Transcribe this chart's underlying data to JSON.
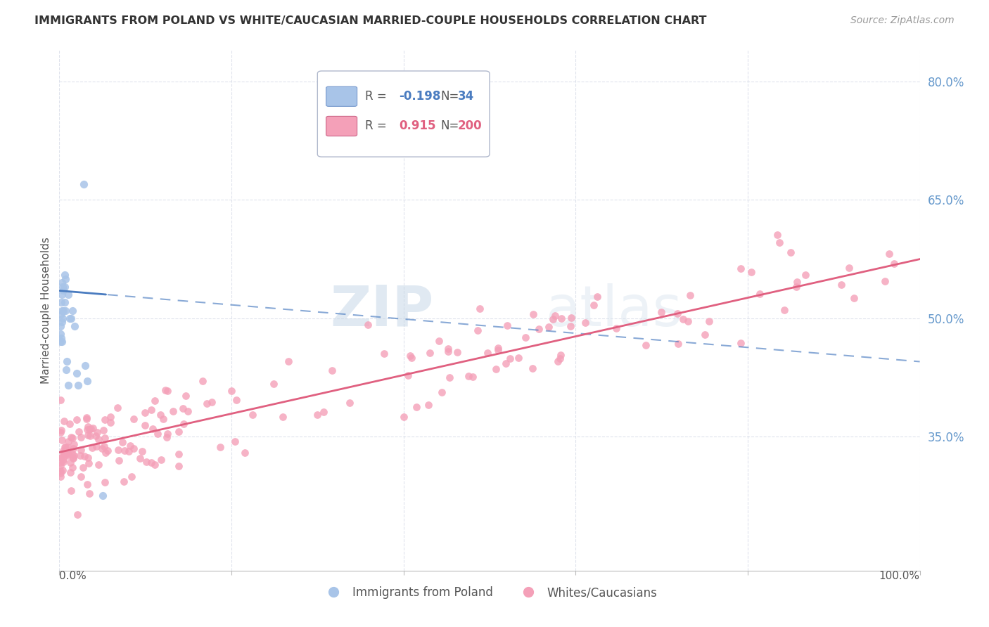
{
  "title": "IMMIGRANTS FROM POLAND VS WHITE/CAUCASIAN MARRIED-COUPLE HOUSEHOLDS CORRELATION CHART",
  "source": "Source: ZipAtlas.com",
  "ylabel": "Married-couple Households",
  "ytick_vals": [
    0.8,
    0.65,
    0.5,
    0.35
  ],
  "ytick_labels": [
    "80.0%",
    "65.0%",
    "50.0%",
    "35.0%"
  ],
  "blue_R": -0.198,
  "blue_N": 34,
  "pink_R": 0.915,
  "pink_N": 200,
  "blue_color": "#a8c4e8",
  "pink_color": "#f4a0b8",
  "blue_line_color": "#4a7cc0",
  "pink_line_color": "#e06080",
  "legend_blue": "Immigrants from Poland",
  "legend_pink": "Whites/Caucasians",
  "xlim": [
    0.0,
    1.0
  ],
  "ylim": [
    0.18,
    0.84
  ],
  "blue_seed": 42,
  "pink_seed": 99,
  "blue_line_x0": 0.0,
  "blue_line_x1": 1.0,
  "blue_line_y0": 0.535,
  "blue_line_y1": 0.445,
  "blue_line_solid_xmax": 0.055,
  "pink_line_x0": 0.0,
  "pink_line_x1": 1.0,
  "pink_line_y0": 0.33,
  "pink_line_y1": 0.575,
  "watermark_zip": "ZIP",
  "watermark_atlas": "atlas",
  "grid_color": "#d8dde8",
  "right_tick_color": "#6699cc"
}
